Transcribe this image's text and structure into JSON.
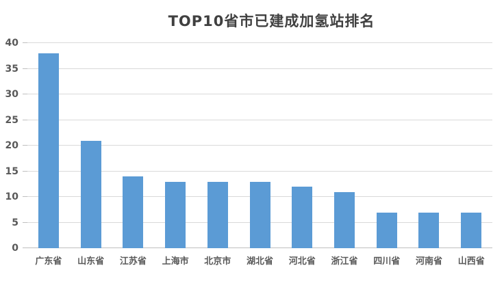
{
  "chart_data": {
    "type": "bar",
    "title": "TOP10省市已建成加氢站排名",
    "categories": [
      "广东省",
      "山东省",
      "江苏省",
      "上海市",
      "北京市",
      "湖北省",
      "河北省",
      "浙江省",
      "四川省",
      "河南省",
      "山西省"
    ],
    "values": [
      38,
      21,
      14,
      13,
      13,
      13,
      12,
      11,
      7,
      7,
      7
    ],
    "xlabel": "",
    "ylabel": "",
    "ylim": [
      0,
      40
    ],
    "y_ticks": [
      0,
      5,
      10,
      15,
      20,
      25,
      30,
      35,
      40
    ],
    "grid": "horizontal-gridlines",
    "legend": "none",
    "colors": {
      "bar": "#5B9BD5",
      "gridline": "#D9D9D9",
      "axis_line": "#BFBFBF",
      "title_text": "#404040",
      "tick_label_text": "#595959",
      "background": "#FFFFFF"
    }
  }
}
